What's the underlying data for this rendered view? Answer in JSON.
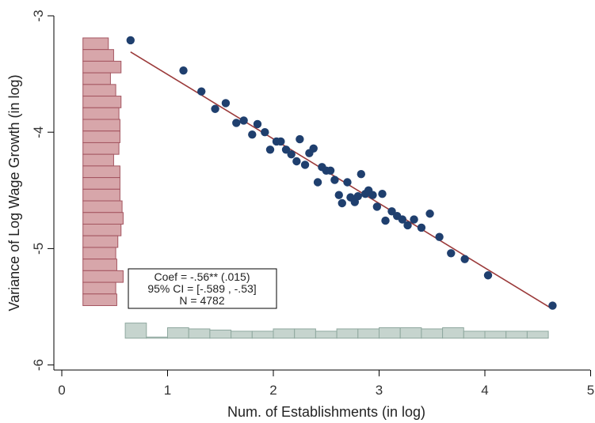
{
  "chart_data": {
    "type": "scatter",
    "xlabel": "Num. of Establishments (in log)",
    "ylabel": "Variance of Log Wage Growth (in log)",
    "xlim": [
      0,
      5
    ],
    "ylim": [
      -6,
      -3
    ],
    "xticks": [
      0,
      1,
      2,
      3,
      4,
      5
    ],
    "yticks": [
      -3,
      -4,
      -5,
      -6
    ],
    "grid": false,
    "colors": {
      "points": "#1f3f6e",
      "fit_line": "#9b3a3a",
      "hist_y": "#d7a6aa",
      "hist_y_edge": "#a45560",
      "hist_x": "#c6d4ce",
      "hist_x_edge": "#8fa89f"
    },
    "points": [
      [
        0.65,
        -3.21
      ],
      [
        1.15,
        -3.47
      ],
      [
        1.32,
        -3.65
      ],
      [
        1.45,
        -3.8
      ],
      [
        1.55,
        -3.75
      ],
      [
        1.65,
        -3.92
      ],
      [
        1.72,
        -3.9
      ],
      [
        1.8,
        -4.02
      ],
      [
        1.85,
        -3.93
      ],
      [
        1.92,
        -4.0
      ],
      [
        1.97,
        -4.15
      ],
      [
        2.03,
        -4.08
      ],
      [
        2.07,
        -4.08
      ],
      [
        2.12,
        -4.15
      ],
      [
        2.17,
        -4.19
      ],
      [
        2.22,
        -4.25
      ],
      [
        2.25,
        -4.06
      ],
      [
        2.3,
        -4.28
      ],
      [
        2.34,
        -4.18
      ],
      [
        2.38,
        -4.14
      ],
      [
        2.42,
        -4.43
      ],
      [
        2.46,
        -4.3
      ],
      [
        2.5,
        -4.33
      ],
      [
        2.54,
        -4.33
      ],
      [
        2.58,
        -4.41
      ],
      [
        2.62,
        -4.54
      ],
      [
        2.65,
        -4.61
      ],
      [
        2.7,
        -4.43
      ],
      [
        2.73,
        -4.56
      ],
      [
        2.77,
        -4.6
      ],
      [
        2.8,
        -4.55
      ],
      [
        2.83,
        -4.36
      ],
      [
        2.87,
        -4.53
      ],
      [
        2.9,
        -4.5
      ],
      [
        2.94,
        -4.54
      ],
      [
        2.98,
        -4.64
      ],
      [
        3.03,
        -4.53
      ],
      [
        3.06,
        -4.76
      ],
      [
        3.12,
        -4.68
      ],
      [
        3.17,
        -4.72
      ],
      [
        3.22,
        -4.75
      ],
      [
        3.27,
        -4.8
      ],
      [
        3.33,
        -4.75
      ],
      [
        3.4,
        -4.82
      ],
      [
        3.48,
        -4.7
      ],
      [
        3.57,
        -4.9
      ],
      [
        3.68,
        -5.04
      ],
      [
        3.81,
        -5.09
      ],
      [
        4.03,
        -5.23
      ],
      [
        4.64,
        -5.49
      ]
    ],
    "fit_line": {
      "x": [
        0.65,
        4.64
      ],
      "y": [
        -3.31,
        -5.52
      ]
    },
    "y_histogram": {
      "bins_y": [
        -3.19,
        -3.29,
        -3.39,
        -3.49,
        -3.59,
        -3.69,
        -3.79,
        -3.89,
        -3.99,
        -4.09,
        -4.19,
        -4.29,
        -4.39,
        -4.49,
        -4.59,
        -4.69,
        -4.79,
        -4.89,
        -4.99,
        -5.09,
        -5.19,
        -5.29,
        -5.39
      ],
      "bin_height": 0.1,
      "x_start": 0.2,
      "x_ends": [
        0.44,
        0.49,
        0.56,
        0.46,
        0.51,
        0.56,
        0.54,
        0.55,
        0.55,
        0.54,
        0.49,
        0.55,
        0.55,
        0.55,
        0.57,
        0.58,
        0.56,
        0.53,
        0.51,
        0.52,
        0.58,
        0.51,
        0.52
      ]
    },
    "x_histogram": {
      "bins_x": [
        0.6,
        0.8,
        1.0,
        1.2,
        1.4,
        1.6,
        1.8,
        2.0,
        2.2,
        2.4,
        2.6,
        2.8,
        3.0,
        3.2,
        3.4,
        3.6,
        3.8,
        4.0,
        4.2,
        4.4
      ],
      "bin_width": 0.2,
      "y_base": -5.77,
      "y_tops": [
        -5.64,
        -5.76,
        -5.68,
        -5.69,
        -5.7,
        -5.71,
        -5.71,
        -5.69,
        -5.69,
        -5.71,
        -5.69,
        -5.69,
        -5.68,
        -5.68,
        -5.69,
        -5.68,
        -5.71,
        -5.71,
        -5.71,
        -5.71
      ]
    }
  },
  "annotation": {
    "line1": "Coef = -.56**  (.015)",
    "line2": "95% CI = [-.589 , -.53]",
    "line3": "N = 4782"
  }
}
